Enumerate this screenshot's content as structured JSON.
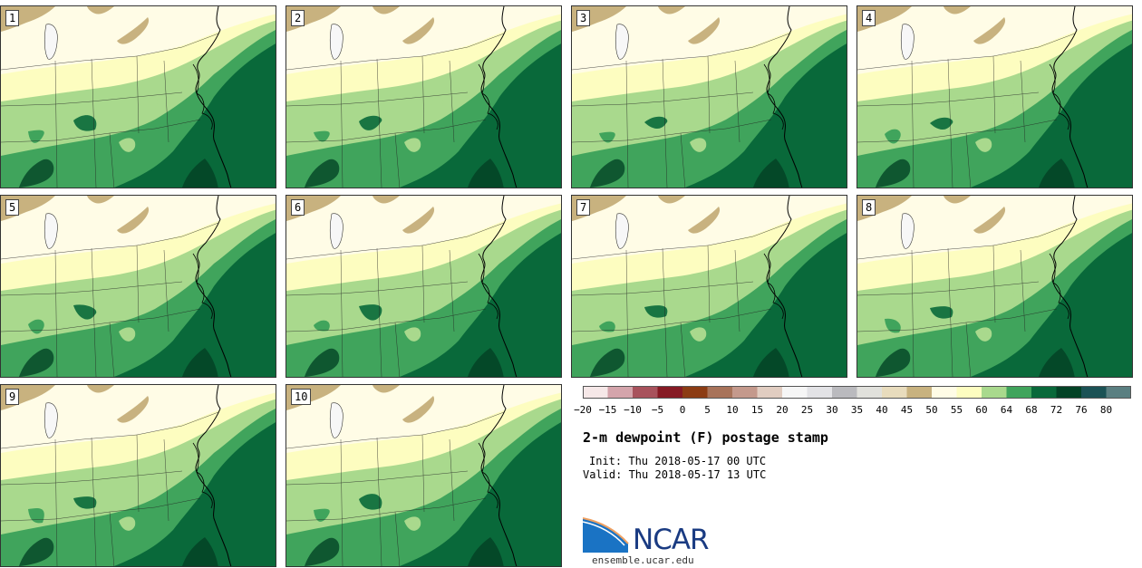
{
  "figure": {
    "title": "2-m dewpoint (F) postage stamp",
    "init_text": "Init: Thu 2018-05-17 00 UTC",
    "valid_text": "Valid: Thu 2018-05-17 13 UTC"
  },
  "members": [
    "1",
    "2",
    "3",
    "4",
    "5",
    "6",
    "7",
    "8",
    "9",
    "10"
  ],
  "colorbar": {
    "tick_labels": [
      "−20",
      "−15",
      "−10",
      "−5",
      "0",
      "5",
      "10",
      "15",
      "20",
      "25",
      "30",
      "35",
      "40",
      "45",
      "50",
      "55",
      "60",
      "64",
      "68",
      "72",
      "76",
      "80"
    ],
    "colors": [
      "#f6e8e8",
      "#d4a4ab",
      "#a8525c",
      "#861a24",
      "#8c3c14",
      "#a8735a",
      "#c4998c",
      "#e1cdc1",
      "#f6f6f6",
      "#e3e3e6",
      "#bababe",
      "#e1e1dc",
      "#e8dcbd",
      "#c8b27f",
      "#fffce6",
      "#fdfdc0",
      "#a9d98d",
      "#40a45c",
      "#09693a",
      "#034326",
      "#1b5255",
      "#5a7f81"
    ]
  },
  "map_colors": {
    "lt50": "#c8b27f",
    "50_55": "#fffce6",
    "55_60": "#fdfdc0",
    "60_64": "#a9d98d",
    "64_68": "#40a45c",
    "68_72": "#09693a",
    "72_76": "#034326"
  },
  "branding": {
    "logo_text": "NCAR",
    "url": "ensemble.ucar.edu"
  }
}
